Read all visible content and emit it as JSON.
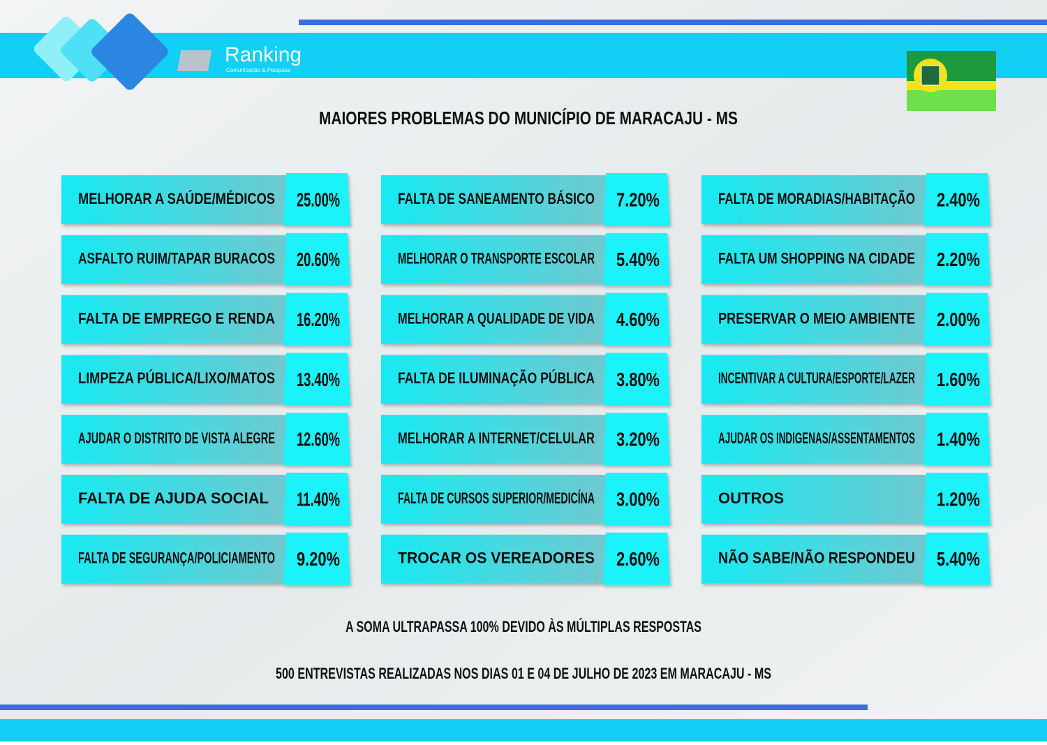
{
  "header": {
    "logo_name": "Ranking",
    "logo_tagline": "Comunicação & Pesquisa",
    "title": "MAIORES PROBLEMAS DO MUNICÍPIO DE MARACAJU - MS"
  },
  "columns": [
    {
      "items": [
        {
          "label": "MELHORAR A SAÚDE/MÉDICOS",
          "value": "25.00%"
        },
        {
          "label": "ASFALTO RUIM/TAPAR BURACOS",
          "value": "20.60%"
        },
        {
          "label": "FALTA DE EMPREGO E RENDA",
          "value": "16.20%"
        },
        {
          "label": "LIMPEZA PÚBLICA/LIXO/MATOS",
          "value": "13.40%"
        },
        {
          "label": "AJUDAR O DISTRITO DE VISTA ALEGRE",
          "value": "12.60%"
        },
        {
          "label": "FALTA DE AJUDA SOCIAL",
          "value": "11.40%"
        },
        {
          "label": "FALTA DE SEGURANÇA/POLICIAMENTO",
          "value": "9.20%"
        }
      ]
    },
    {
      "items": [
        {
          "label": "FALTA DE SANEAMENTO BÁSICO",
          "value": "7.20%"
        },
        {
          "label": "MELHORAR O TRANSPORTE ESCOLAR",
          "value": "5.40%"
        },
        {
          "label": "MELHORAR A QUALIDADE DE VIDA",
          "value": "4.60%"
        },
        {
          "label": "FALTA DE ILUMINAÇÃO PÚBLICA",
          "value": "3.80%"
        },
        {
          "label": "MELHORAR A INTERNET/CELULAR",
          "value": "3.20%"
        },
        {
          "label": "FALTA DE CURSOS SUPERIOR/MEDICÍNA",
          "value": "3.00%"
        },
        {
          "label": "TROCAR OS VEREADORES",
          "value": "2.60%"
        }
      ]
    },
    {
      "items": [
        {
          "label": "FALTA DE MORADIAS/HABITAÇÃO",
          "value": "2.40%"
        },
        {
          "label": "FALTA UM SHOPPING NA CIDADE",
          "value": "2.20%"
        },
        {
          "label": "PRESERVAR O MEIO AMBIENTE",
          "value": "2.00%"
        },
        {
          "label": "INCENTIVAR A CULTURA/ESPORTE/LAZER",
          "value": "1.60%"
        },
        {
          "label": "AJUDAR OS INDIGENAS/ASSENTAMENTOS",
          "value": "1.40%"
        },
        {
          "label": "OUTROS",
          "value": "1.20%"
        },
        {
          "label": "NÃO SABE/NÃO RESPONDEU",
          "value": "5.40%"
        }
      ]
    }
  ],
  "footer": {
    "note": "A SOMA ULTRAPASSA 100% DEVIDO ÀS MÚLTIPLAS RESPOSTAS",
    "source": "500 ENTREVISTAS REALIZADAS NOS DIAS 01 E 04 DE JULHO DE 2023 EM MARACAJU - MS"
  }
}
